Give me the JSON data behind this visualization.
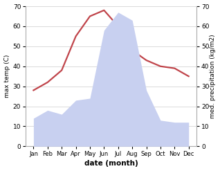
{
  "months": [
    "Jan",
    "Feb",
    "Mar",
    "Apr",
    "May",
    "Jun",
    "Jul",
    "Aug",
    "Sep",
    "Oct",
    "Nov",
    "Dec"
  ],
  "temperature": [
    28,
    32,
    38,
    55,
    65,
    68,
    60,
    48,
    43,
    40,
    39,
    35
  ],
  "precipitation": [
    14,
    18,
    16,
    23,
    24,
    58,
    67,
    63,
    28,
    13,
    12,
    12
  ],
  "temp_color": "#c0444a",
  "precip_fill_color": "#c8d0f0",
  "ylabel_left": "max temp (C)",
  "ylabel_right": "med. precipitation (kg/m2)",
  "xlabel": "date (month)",
  "ylim_left": [
    0,
    70
  ],
  "ylim_right": [
    0,
    70
  ],
  "yticks": [
    0,
    10,
    20,
    30,
    40,
    50,
    60,
    70
  ],
  "bg_color": "#ffffff",
  "spine_color": "#aaaaaa"
}
